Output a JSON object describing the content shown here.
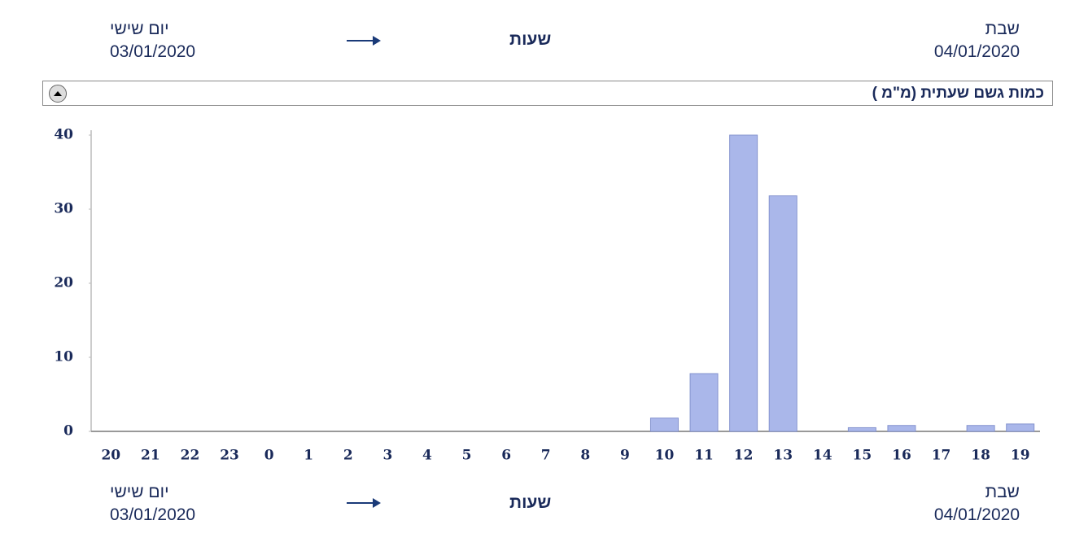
{
  "top": {
    "right_day": "שבת",
    "right_date": "04/01/2020",
    "center": "שעות",
    "left_day": "יום שישי",
    "left_date": "03/01/2020"
  },
  "bottom": {
    "right_day": "שבת",
    "right_date": "04/01/2020",
    "center": "שעות",
    "left_day": "יום שישי",
    "left_date": "03/01/2020"
  },
  "chart_data": {
    "type": "bar",
    "title": "כמות גשם שעתית (מ\"מ )",
    "categories": [
      "20",
      "21",
      "22",
      "23",
      "0",
      "1",
      "2",
      "3",
      "4",
      "5",
      "6",
      "7",
      "8",
      "9",
      "10",
      "11",
      "12",
      "13",
      "14",
      "15",
      "16",
      "17",
      "18",
      "19"
    ],
    "values": [
      0,
      0,
      0,
      0,
      0,
      0,
      0,
      0,
      0,
      0,
      0,
      0,
      0,
      0,
      1.8,
      7.8,
      40,
      31.8,
      0,
      0.5,
      0.8,
      0,
      0.8,
      1.0
    ],
    "color": "#aab7ea",
    "ylim": [
      0,
      40
    ],
    "yticks": [
      0,
      10,
      20,
      30,
      40
    ],
    "grid": false
  }
}
